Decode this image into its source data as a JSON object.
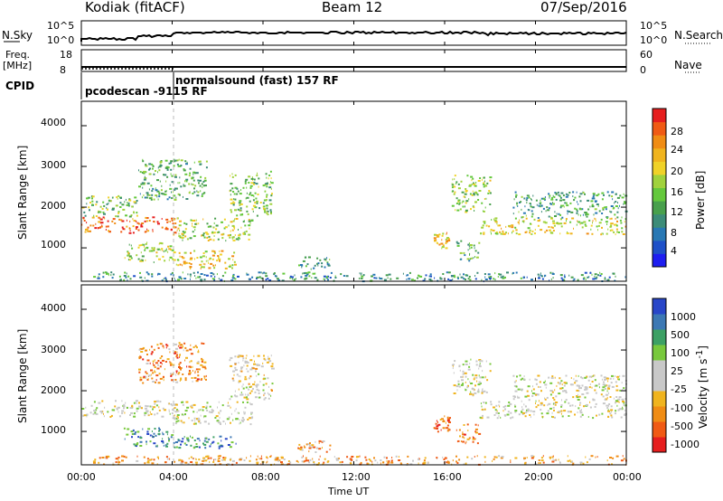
{
  "header": {
    "station": "Kodiak (fitACF)",
    "beam": "Beam 12",
    "date": "07/Sep/2016"
  },
  "nsky": {
    "label": "N.Sky",
    "tick_top": "10^5",
    "tick_bottom": "10^0",
    "right_label": "N.Search",
    "right_tick_top": "10^5",
    "right_tick_bottom": "10^0"
  },
  "freq": {
    "label_line1": "Freq.",
    "label_line2": "[MHz]",
    "tick_top": "18",
    "tick_bottom": "8",
    "right_label": "Nave",
    "right_tick_top": "60",
    "right_tick_bottom": "0"
  },
  "cpid": {
    "label": "CPID",
    "segment1": "pcodescan -9115 RF",
    "segment2": "normalsound (fast) 157 RF"
  },
  "chart_data": [
    {
      "type": "heatmap",
      "title": "",
      "xlabel": "Time UT",
      "ylabel": "Slant Range [km]",
      "x_ticks": [
        "00:00",
        "04:00",
        "08:00",
        "12:00",
        "16:00",
        "20:00",
        "00:00"
      ],
      "y_ticks": [
        "1000",
        "2000",
        "3000",
        "4000"
      ],
      "xlim": [
        0,
        24
      ],
      "ylim": [
        180,
        4600
      ],
      "colorbar": {
        "label": "Power [dB]",
        "ticks": [
          "4",
          "8",
          "12",
          "16",
          "20",
          "24",
          "28"
        ],
        "range": [
          0,
          30
        ],
        "colors": [
          "#1e1ef0",
          "#1e50c8",
          "#2878b4",
          "#3c8c78",
          "#48a04c",
          "#64c83c",
          "#a0d23c",
          "#f0d228",
          "#f0b41e",
          "#f08c14",
          "#f05a14",
          "#e61e1e"
        ]
      },
      "regions": [
        {
          "t0": 0.0,
          "t1": 4.2,
          "r0": 1380,
          "r1": 1780,
          "level": 0.85
        },
        {
          "t0": 0.0,
          "t1": 2.5,
          "r0": 1780,
          "r1": 2300,
          "level": 0.45
        },
        {
          "t0": 1.8,
          "t1": 4.0,
          "r0": 650,
          "r1": 1150,
          "level": 0.5
        },
        {
          "t0": 4.0,
          "t1": 6.8,
          "r0": 500,
          "r1": 950,
          "level": 0.65
        },
        {
          "t0": 4.0,
          "t1": 7.5,
          "r0": 1200,
          "r1": 1750,
          "level": 0.55
        },
        {
          "t0": 6.5,
          "t1": 8.4,
          "r0": 1800,
          "r1": 2900,
          "level": 0.45
        },
        {
          "t0": 2.5,
          "t1": 5.5,
          "r0": 2200,
          "r1": 3200,
          "level": 0.4
        },
        {
          "t0": 0.5,
          "t1": 24.0,
          "r0": 200,
          "r1": 420,
          "level": 0.3
        },
        {
          "t0": 9.5,
          "t1": 11.0,
          "r0": 500,
          "r1": 800,
          "level": 0.35
        },
        {
          "t0": 15.5,
          "t1": 16.2,
          "r0": 1000,
          "r1": 1400,
          "level": 0.7
        },
        {
          "t0": 16.5,
          "t1": 17.5,
          "r0": 700,
          "r1": 1200,
          "level": 0.4
        },
        {
          "t0": 16.3,
          "t1": 18.0,
          "r0": 1900,
          "r1": 2800,
          "level": 0.5
        },
        {
          "t0": 17.5,
          "t1": 24.0,
          "r0": 1350,
          "r1": 1750,
          "level": 0.6
        },
        {
          "t0": 19.0,
          "t1": 24.0,
          "r0": 1750,
          "r1": 2400,
          "level": 0.35
        }
      ]
    },
    {
      "type": "heatmap",
      "title": "",
      "xlabel": "Time UT",
      "ylabel": "Slant Range [km]",
      "x_ticks": [
        "00:00",
        "04:00",
        "08:00",
        "12:00",
        "16:00",
        "20:00",
        "00:00"
      ],
      "y_ticks": [
        "1000",
        "2000",
        "3000",
        "4000"
      ],
      "xlim": [
        0,
        24
      ],
      "ylim": [
        180,
        4600
      ],
      "colorbar": {
        "label": "Velocity [m s^-1]",
        "ticks": [
          "1000",
          "500",
          "100",
          "25",
          "-25",
          "-100",
          "-500",
          "-1000"
        ],
        "colors": [
          "#2846c8",
          "#3c78b4",
          "#3ca064",
          "#78c83c",
          "#c8c8c8",
          "#c8c8c8",
          "#f0b41e",
          "#f08c14",
          "#f05a14",
          "#e61e1e"
        ]
      },
      "regions": [
        {
          "t0": 0.0,
          "t1": 4.2,
          "r0": 1380,
          "r1": 1780,
          "level": 0.5
        },
        {
          "t0": 1.8,
          "t1": 4.0,
          "r0": 650,
          "r1": 1100,
          "level": 0.2
        },
        {
          "t0": 4.0,
          "t1": 6.8,
          "r0": 600,
          "r1": 900,
          "level": 0.2
        },
        {
          "t0": 4.0,
          "t1": 7.5,
          "r0": 1200,
          "r1": 1750,
          "level": 0.5
        },
        {
          "t0": 6.5,
          "t1": 8.4,
          "r0": 1800,
          "r1": 2900,
          "level": 0.55
        },
        {
          "t0": 2.5,
          "t1": 5.5,
          "r0": 2200,
          "r1": 3200,
          "level": 0.75
        },
        {
          "t0": 0.5,
          "t1": 24.0,
          "r0": 200,
          "r1": 420,
          "level": 0.7
        },
        {
          "t0": 9.5,
          "t1": 11.0,
          "r0": 500,
          "r1": 800,
          "level": 0.75
        },
        {
          "t0": 15.5,
          "t1": 16.2,
          "r0": 1000,
          "r1": 1400,
          "level": 0.85
        },
        {
          "t0": 16.5,
          "t1": 17.5,
          "r0": 700,
          "r1": 1200,
          "level": 0.8
        },
        {
          "t0": 16.3,
          "t1": 18.0,
          "r0": 1900,
          "r1": 2800,
          "level": 0.5
        },
        {
          "t0": 17.5,
          "t1": 24.0,
          "r0": 1350,
          "r1": 1750,
          "level": 0.5
        },
        {
          "t0": 19.0,
          "t1": 24.0,
          "r0": 1750,
          "r1": 2400,
          "level": 0.5
        }
      ]
    }
  ]
}
